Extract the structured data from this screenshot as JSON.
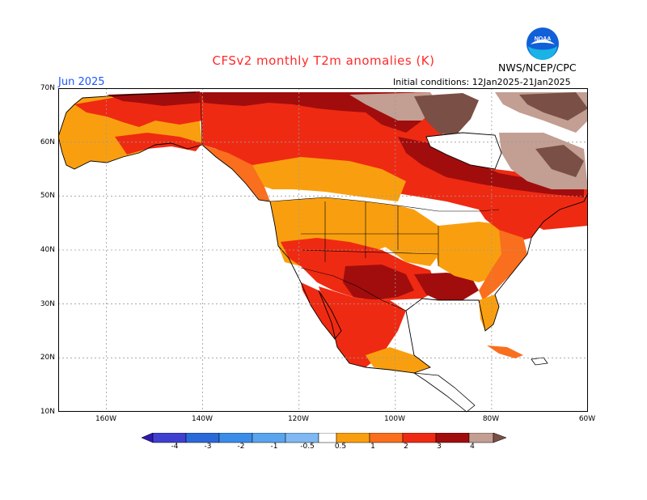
{
  "header": {
    "title": "CFSv2 monthly T2m anomalies (K)",
    "month": "Jun 2025",
    "initial_conditions": "Initial conditions: 12Jan2025-21Jan2025",
    "agency": "NWS/NCEP/CPC",
    "logo_text": "NOAA"
  },
  "map": {
    "region": "North America",
    "lat_labels": [
      "70N",
      "60N",
      "50N",
      "40N",
      "30N",
      "20N",
      "10N"
    ],
    "lon_labels": [
      "160W",
      "140W",
      "120W",
      "100W",
      "80W",
      "60W"
    ],
    "ocean_color": "#ffffff"
  },
  "colorbar": {
    "labels": [
      "-4",
      "-3",
      "-2",
      "-1",
      "-0.5",
      "0.5",
      "1",
      "2",
      "3",
      "4"
    ],
    "colors": [
      "#2e18b0",
      "#3f3fd0",
      "#2a69d8",
      "#3b8ce8",
      "#7fb8f2",
      "#ffffff",
      "#f99f0f",
      "#f96f1d",
      "#ef2a12",
      "#a10d0d",
      "#c39e93",
      "#7a4f46"
    ]
  },
  "legend_colors": {
    "anom_0_5_1": "#f99f0f",
    "anom_1_2": "#f96f1d",
    "anom_2_3": "#ef2a12",
    "anom_3_4": "#a10d0d",
    "anom_4_plus": "#7a4f46",
    "anom_above_4_light": "#c39e93"
  }
}
